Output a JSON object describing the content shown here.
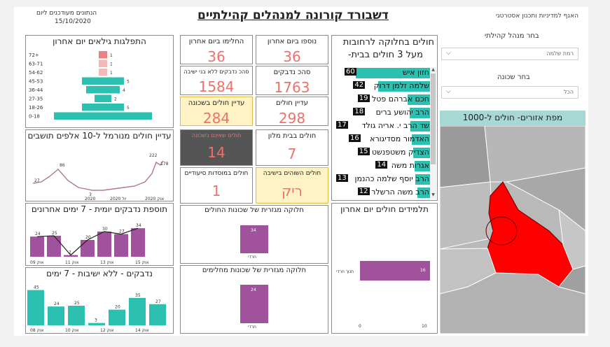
{
  "header": {
    "title": "דשבורד קורונה למנהלים קהילתיים",
    "updated_label": "הנתונים מעודכנים ליום",
    "updated_date": "15/10/2020",
    "department": "האגף למדיניות ותכנון אסטרטגי"
  },
  "filters": {
    "manager_label": "בחר מנהל קהילתי",
    "manager_value": "רמת שלמה",
    "neighborhood_label": "בחר שכונה",
    "neighborhood_value": "הכל"
  },
  "age_chart": {
    "title": "התפלגות גילאים יום אחרון",
    "categories": [
      "72+",
      "63-71",
      "54-62",
      "45-53",
      "36-44",
      "27-35",
      "18-26",
      "0-18"
    ],
    "values": [
      1,
      1,
      1,
      5,
      4,
      2,
      5,
      null
    ]
  },
  "kpis": {
    "new_today": {
      "label": "נוספו ביום אחרון",
      "value": "36"
    },
    "recovered_today": {
      "label": "החלימו ביום אחרון",
      "value": "36"
    },
    "total_infected": {
      "label": "סהכ נדבקים",
      "value": "1763"
    },
    "total_no_yeshivas": {
      "label": "סהכ נדבקים ללא בני ישיבה",
      "value": "1584"
    },
    "still_sick": {
      "label": "עדיין חולים",
      "value": "298"
    },
    "still_sick_neighborhood": {
      "label": "עדיין חולים בשכונה",
      "value": "284"
    },
    "hotel_patients": {
      "label": "חולים בבית מלון",
      "value": "7"
    },
    "hidden_box": {
      "label": "חולים שאינם בשכונה",
      "value": "14"
    },
    "nursing_patients": {
      "label": "חולים במוסדות סיעודיים",
      "value": "1"
    },
    "yeshiva_patients": {
      "label": "חולים השוהים בישיבה",
      "value": "ריק"
    }
  },
  "streets": {
    "title_line1": "חולים בחלוקה לרחובות",
    "title_line2": "מעל 3 חולים בבית-",
    "items": [
      {
        "name": "חזון איש",
        "count": "60",
        "frac": 0.9
      },
      {
        "name": "שלמה זלמן דרוק",
        "count": "42",
        "frac": 0.63
      },
      {
        "name": "חכם אברהם פטל",
        "count": "19",
        "frac": 0.28
      },
      {
        "name": "הרב יהושע ברים",
        "count": "18",
        "frac": 0.26
      },
      {
        "name": "שד הרב י. אריה גולד",
        "count": "17",
        "frac": 0.25
      },
      {
        "name": "האדמור מסדיגורא",
        "count": "16",
        "frac": 0.23
      },
      {
        "name": "הצדיק משטפנשט",
        "count": "15",
        "frac": 0.22
      },
      {
        "name": "אגרות משה",
        "count": "14",
        "frac": 0.2
      },
      {
        "name": "הרב יוסף שלמה כהנמן",
        "count": "13",
        "frac": 0.19
      },
      {
        "name": "הרב משה הרשלר",
        "count": "12",
        "frac": 0.17
      }
    ]
  },
  "map": {
    "title": "מפת אזורים- חולים ל-1000",
    "highlight_color": "#ff0000"
  },
  "line_chart": {
    "title": "עדיין חולים מנורמל ל-10 אלפים תושבים",
    "labels": [
      {
        "text": "27"
      },
      {
        "text": "86"
      },
      {
        "text": "3"
      },
      {
        "text": "222"
      },
      {
        "text": "178"
      }
    ],
    "x_ticks": [
      "2020",
      "יול 2020",
      "אוק 2020"
    ]
  },
  "daily_chart": {
    "title": "תוספת נדבקים יומית - 7 ימים אחרונים",
    "values": [
      24,
      25,
      2,
      20,
      30,
      27,
      34
    ],
    "line": [
      24,
      25,
      2,
      20,
      30,
      27,
      34
    ],
    "labels": [
      "24",
      "25",
      "2",
      "20",
      "30",
      "27",
      "34"
    ],
    "x_ticks": [
      "אוק 09",
      "אוק 11",
      "אוק 13",
      "אוק 15"
    ]
  },
  "no_yeshiva_chart": {
    "title": "נדבקים - ללא ישיבות - 7 ימים",
    "values": [
      45,
      24,
      25,
      3,
      20,
      35,
      27
    ],
    "labels": [
      "45",
      "24",
      "25",
      "3",
      "20",
      "35",
      "27"
    ],
    "x_ticks": [
      "אוק 08",
      "אוק 10",
      "אוק 12",
      "אוק 14"
    ]
  },
  "sick_by_sector": {
    "title": "חלוקה מגזרית של שכונות החולים",
    "bar_label": "34",
    "category": "חרדי"
  },
  "recovered_by_sector": {
    "title": "חלוקה מגזרית של שכונות מחלימים",
    "bar_label": "24",
    "category": "חרדי"
  },
  "students": {
    "title": "תלמידים חולים יום אחרון",
    "category": "חנוך חרדי",
    "value_label": "16",
    "x_ticks": [
      "0",
      "10"
    ]
  }
}
